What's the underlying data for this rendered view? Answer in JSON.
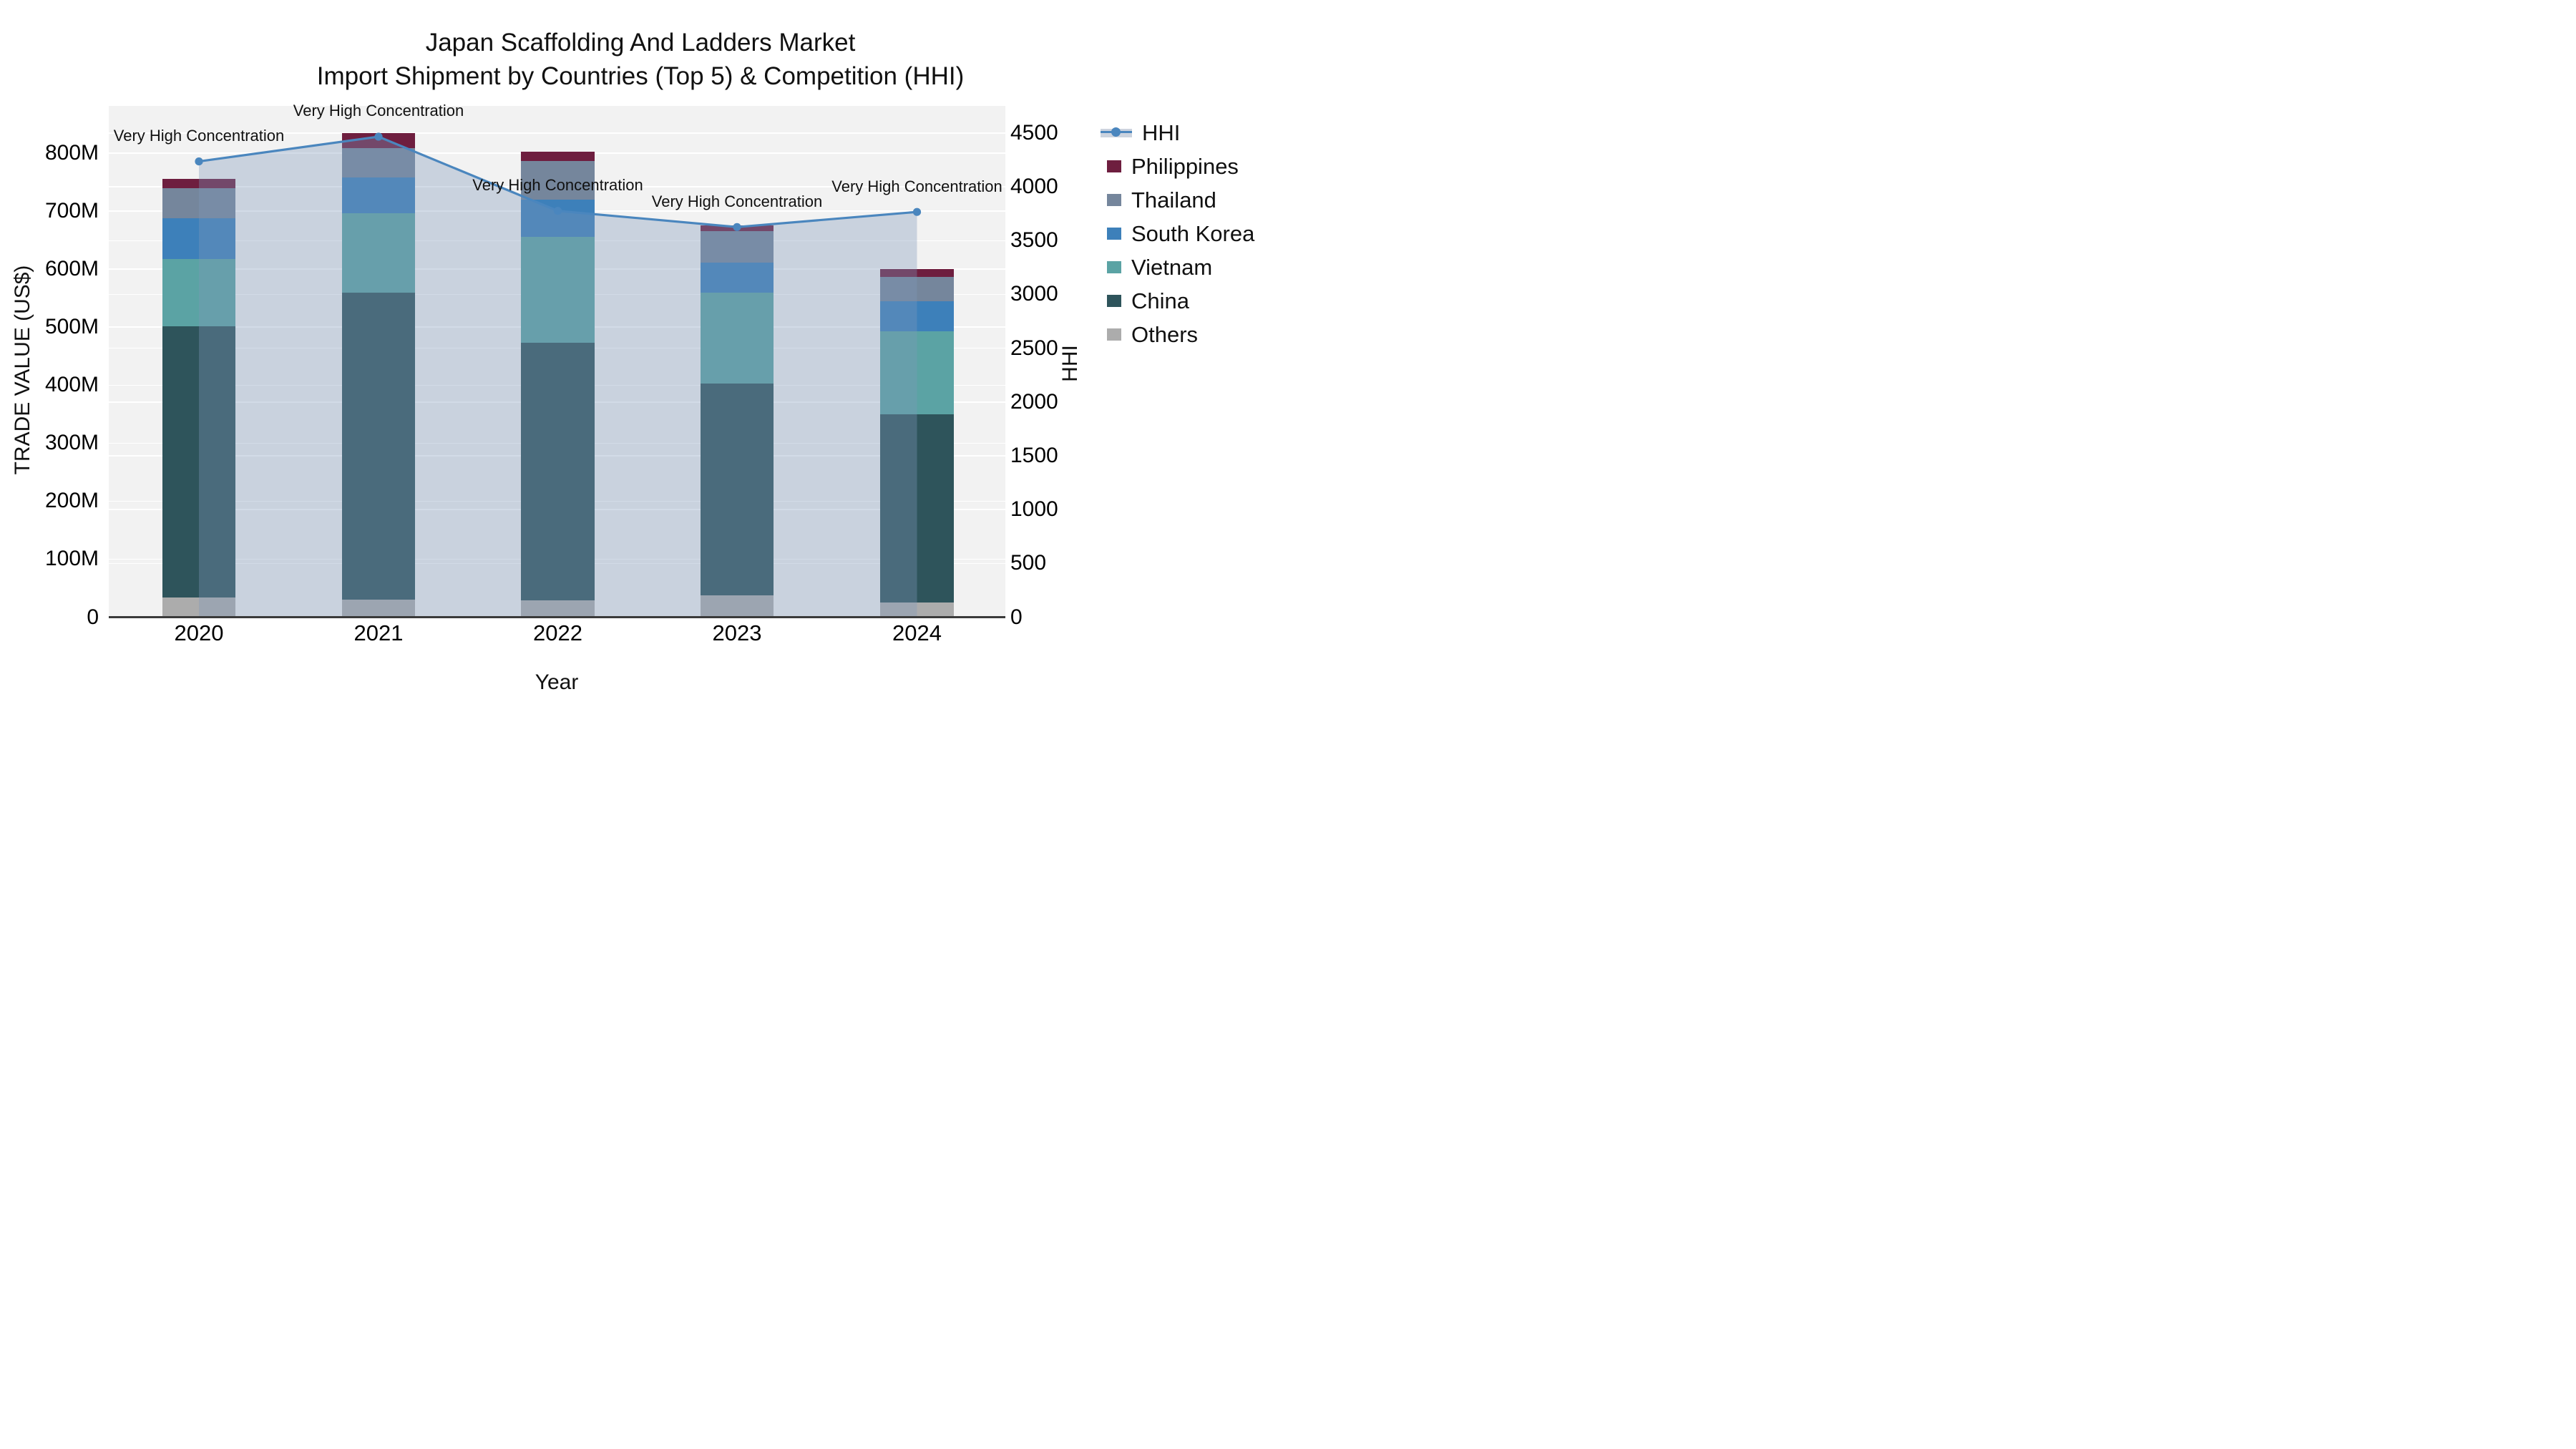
{
  "title": {
    "line1": "Japan Scaffolding And Ladders Market",
    "line2": "Import Shipment by Countries (Top 5) & Competition (HHI)"
  },
  "axes": {
    "x": {
      "label": "Year"
    },
    "y_left": {
      "label": "TRADE VALUE (US$)",
      "tick_labels": [
        "0",
        "100M",
        "200M",
        "300M",
        "400M",
        "500M",
        "600M",
        "700M",
        "800M"
      ],
      "tick_values": [
        0,
        100,
        200,
        300,
        400,
        500,
        600,
        700,
        800
      ]
    },
    "y_right": {
      "label": "HHI",
      "tick_labels": [
        "0",
        "500",
        "1000",
        "1500",
        "2000",
        "2500",
        "3000",
        "3500",
        "4000",
        "4500"
      ],
      "tick_values": [
        0,
        500,
        1000,
        1500,
        2000,
        2500,
        3000,
        3500,
        4000,
        4500
      ]
    }
  },
  "legend": {
    "items": [
      {
        "label": "HHI",
        "color": "#4a86be",
        "swatch": "line-band"
      },
      {
        "label": "Philippines",
        "color": "#6e1e3f",
        "swatch": "box"
      },
      {
        "label": "Thailand",
        "color": "#75869c",
        "swatch": "box"
      },
      {
        "label": "South Korea",
        "color": "#3d80ba",
        "swatch": "box"
      },
      {
        "label": "Vietnam",
        "color": "#5ba3a4",
        "swatch": "box"
      },
      {
        "label": "China",
        "color": "#2e545b",
        "swatch": "box"
      },
      {
        "label": "Others",
        "color": "#acacac",
        "swatch": "box"
      }
    ]
  },
  "chart_data": {
    "type": "bar",
    "subtype": "stacked-bars-with-line-on-secondary-axis",
    "categories": [
      "2020",
      "2021",
      "2022",
      "2023",
      "2024"
    ],
    "value_unit": "Million US$",
    "xlabel": "Year",
    "ylabel_left": "TRADE VALUE (US$)",
    "ylabel_right": "HHI",
    "ylim_left": [
      0,
      882
    ],
    "ylim_right": [
      0,
      4756
    ],
    "grid": true,
    "legend_position": "right",
    "series": [
      {
        "name": "Others",
        "values": [
          34,
          30,
          29,
          38,
          25
        ],
        "color": "#acacac"
      },
      {
        "name": "China",
        "values": [
          467,
          529,
          444,
          365,
          325
        ],
        "color": "#2e545b"
      },
      {
        "name": "Vietnam",
        "values": [
          117,
          137,
          183,
          156,
          143
        ],
        "color": "#5ba3a4"
      },
      {
        "name": "South Korea",
        "values": [
          70,
          62,
          64,
          52,
          52
        ],
        "color": "#3d80ba"
      },
      {
        "name": "Thailand",
        "values": [
          52,
          51,
          67,
          54,
          42
        ],
        "color": "#75869c"
      },
      {
        "name": "Philippines",
        "values": [
          16,
          25,
          16,
          10,
          13
        ],
        "color": "#6e1e3f"
      }
    ],
    "stack_totals": [
      756,
      834,
      803,
      675,
      600
    ],
    "line_series": {
      "name": "HHI",
      "axis": "right",
      "values": [
        4240,
        4470,
        3780,
        3630,
        3770
      ],
      "color": "#4a86be",
      "fill_color": "rgba(125,152,186,0.35)"
    },
    "annotations": [
      {
        "x": "2020",
        "text": "Very High Concentration"
      },
      {
        "x": "2021",
        "text": "Very High Concentration"
      },
      {
        "x": "2022",
        "text": "Very High Concentration"
      },
      {
        "x": "2023",
        "text": "Very High Concentration"
      },
      {
        "x": "2024",
        "text": "Very High Concentration"
      }
    ]
  }
}
